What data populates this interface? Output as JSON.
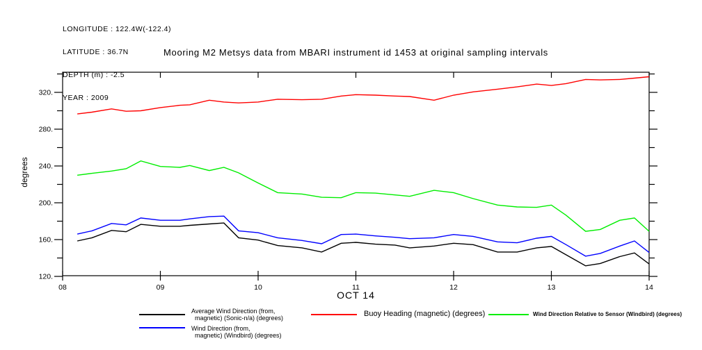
{
  "header": {
    "lines": [
      "LONGITUDE : 122.4W(-122.4)",
      "LATITUDE : 36.7N",
      "DEPTH (m) : -2.5",
      "YEAR : 2009"
    ]
  },
  "title": "Mooring M2 Metsys data from MBARI instrument id 1453 at original sampling intervals",
  "chart_data": {
    "type": "line",
    "title": "Mooring M2 Metsys data from MBARI instrument id 1453 at original sampling intervals",
    "xlabel": "OCT 14",
    "ylabel": "degrees",
    "xlim": [
      8,
      14
    ],
    "ylim": [
      120,
      342
    ],
    "grid": false,
    "legend_position": "bottom",
    "x_ticks": {
      "values": [
        8,
        9,
        10,
        11,
        12,
        13,
        14
      ],
      "labels": [
        "08",
        "09",
        "10",
        "11",
        "12",
        "13",
        "14"
      ]
    },
    "y_ticks": {
      "values": [
        120,
        160,
        200,
        240,
        280,
        320
      ],
      "labels": [
        "120.",
        "160.",
        "200.",
        "240.",
        "280.",
        "320."
      ],
      "minor": [
        140,
        180,
        220,
        260,
        300,
        340
      ]
    },
    "x": [
      8.15,
      8.3,
      8.5,
      8.65,
      8.8,
      9.0,
      9.2,
      9.3,
      9.5,
      9.65,
      9.8,
      10.0,
      10.2,
      10.45,
      10.65,
      10.85,
      11.0,
      11.2,
      11.4,
      11.55,
      11.8,
      12.0,
      12.2,
      12.45,
      12.65,
      12.85,
      13.0,
      13.15,
      13.35,
      13.5,
      13.7,
      13.85,
      14.0
    ],
    "series": [
      {
        "name": "Average Wind Direction (from, magnetic) (Sonic-n/a) (degrees)",
        "color": "#000000",
        "values": [
          158.5,
          162,
          170,
          168.5,
          176.5,
          174.5,
          174.5,
          175.5,
          177,
          178,
          162,
          159.5,
          153.5,
          151,
          146.5,
          156,
          157,
          155,
          154,
          151,
          153,
          156,
          154.5,
          146.5,
          146.5,
          151,
          152.5,
          143.5,
          131.5,
          134,
          141.5,
          145.5,
          133.5
        ]
      },
      {
        "name": "Wind Direction (from, magnetic) (Windbird) (degrees)",
        "color": "#0000ff",
        "values": [
          166,
          169.5,
          177.5,
          176,
          183.5,
          181,
          181,
          182.5,
          185,
          185.5,
          169.5,
          167.5,
          162,
          159,
          155.5,
          165.5,
          166,
          164,
          162.5,
          161,
          162,
          165.5,
          163.5,
          157.5,
          156.5,
          161.5,
          163.5,
          154.5,
          142,
          145,
          153,
          158.5,
          146
        ]
      },
      {
        "name": "Buoy Heading (magnetic) (degrees)",
        "color": "#ff0000",
        "values": [
          296.5,
          298.5,
          302,
          299.5,
          300,
          303.5,
          306,
          306.5,
          311.5,
          309.5,
          308.5,
          309.5,
          312.5,
          312,
          312.5,
          316,
          317.5,
          317,
          316,
          315.5,
          311.5,
          317,
          320.5,
          323.5,
          326,
          329,
          327.5,
          329.5,
          334,
          333.5,
          334,
          335.5,
          337
        ]
      },
      {
        "name": "Wind Direction Relative to Sensor (Windbird) (degrees)",
        "color": "#00ee00",
        "values": [
          230,
          232,
          234.5,
          237,
          245.5,
          239.5,
          238.5,
          240.5,
          235,
          238.5,
          232.5,
          221.5,
          211,
          209.5,
          206,
          205.5,
          211,
          210.5,
          208.5,
          207,
          213.5,
          211,
          204.5,
          197.5,
          195.5,
          195,
          197.5,
          186.5,
          169,
          171,
          181,
          183.5,
          169
        ]
      }
    ]
  },
  "legend": {
    "black": {
      "line1": "Average Wind Direction (from,",
      "line2": "magnetic) (Sonic-n/a) (degrees)"
    },
    "blue": {
      "line1": "Wind Direction (from,",
      "line2": "magnetic) (Windbird) (degrees)"
    },
    "red": {
      "label": "Buoy Heading (magnetic) (degrees)"
    },
    "green": {
      "label": "Wind Direction Relative to Sensor (Windbird) (degrees)"
    }
  }
}
